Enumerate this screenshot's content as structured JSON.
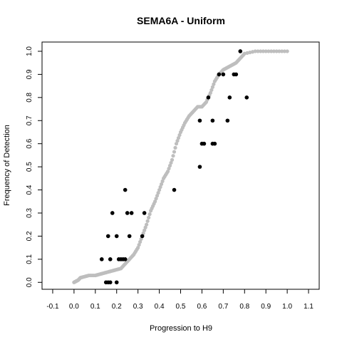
{
  "chart_data": {
    "type": "scatter",
    "title": "SEMA6A - Uniform",
    "xlabel": "Progression to H9",
    "ylabel": "Frequency of Detection",
    "xlim": [
      -0.15,
      1.15
    ],
    "ylim": [
      -0.03,
      1.04
    ],
    "xticks": [
      "-0.1",
      "0.0",
      "0.1",
      "0.2",
      "0.3",
      "0.4",
      "0.5",
      "0.6",
      "0.7",
      "0.8",
      "0.9",
      "1.0",
      "1.1"
    ],
    "yticks": [
      "0.0",
      "0.1",
      "0.2",
      "0.3",
      "0.4",
      "0.5",
      "0.6",
      "0.7",
      "0.8",
      "0.9",
      "1.0"
    ],
    "grid": false,
    "reference_curve": {
      "color": "#bebebe",
      "x": [
        0.0,
        0.01,
        0.02,
        0.03,
        0.05,
        0.07,
        0.1,
        0.12,
        0.14,
        0.16,
        0.18,
        0.2,
        0.22,
        0.24,
        0.26,
        0.28,
        0.3,
        0.32,
        0.34,
        0.36,
        0.38,
        0.4,
        0.42,
        0.44,
        0.46,
        0.48,
        0.5,
        0.52,
        0.54,
        0.56,
        0.58,
        0.6,
        0.62,
        0.64,
        0.66,
        0.68,
        0.7,
        0.72,
        0.74,
        0.76,
        0.78,
        0.8,
        0.85,
        0.9,
        0.95,
        1.0
      ],
      "y": [
        0.0,
        0.005,
        0.01,
        0.02,
        0.025,
        0.03,
        0.03,
        0.035,
        0.04,
        0.045,
        0.05,
        0.055,
        0.06,
        0.08,
        0.1,
        0.12,
        0.15,
        0.2,
        0.25,
        0.31,
        0.35,
        0.4,
        0.45,
        0.48,
        0.53,
        0.6,
        0.65,
        0.69,
        0.72,
        0.74,
        0.76,
        0.76,
        0.78,
        0.82,
        0.87,
        0.9,
        0.92,
        0.93,
        0.94,
        0.95,
        0.97,
        0.99,
        1.0,
        1.0,
        1.0,
        1.0
      ]
    },
    "series": [
      {
        "color": "#000000",
        "points": [
          [
            0.15,
            0.0
          ],
          [
            0.16,
            0.0
          ],
          [
            0.17,
            0.0
          ],
          [
            0.2,
            0.0
          ],
          [
            0.13,
            0.1
          ],
          [
            0.17,
            0.1
          ],
          [
            0.21,
            0.1
          ],
          [
            0.22,
            0.1
          ],
          [
            0.23,
            0.1
          ],
          [
            0.24,
            0.1
          ],
          [
            0.16,
            0.2
          ],
          [
            0.2,
            0.2
          ],
          [
            0.26,
            0.2
          ],
          [
            0.32,
            0.2
          ],
          [
            0.18,
            0.3
          ],
          [
            0.25,
            0.3
          ],
          [
            0.27,
            0.3
          ],
          [
            0.33,
            0.3
          ],
          [
            0.24,
            0.4
          ],
          [
            0.47,
            0.4
          ],
          [
            0.59,
            0.5
          ],
          [
            0.6,
            0.6
          ],
          [
            0.61,
            0.6
          ],
          [
            0.65,
            0.6
          ],
          [
            0.66,
            0.6
          ],
          [
            0.59,
            0.7
          ],
          [
            0.65,
            0.7
          ],
          [
            0.72,
            0.7
          ],
          [
            0.63,
            0.8
          ],
          [
            0.73,
            0.8
          ],
          [
            0.81,
            0.8
          ],
          [
            0.68,
            0.9
          ],
          [
            0.7,
            0.9
          ],
          [
            0.75,
            0.9
          ],
          [
            0.76,
            0.9
          ],
          [
            0.78,
            1.0
          ]
        ]
      }
    ]
  }
}
